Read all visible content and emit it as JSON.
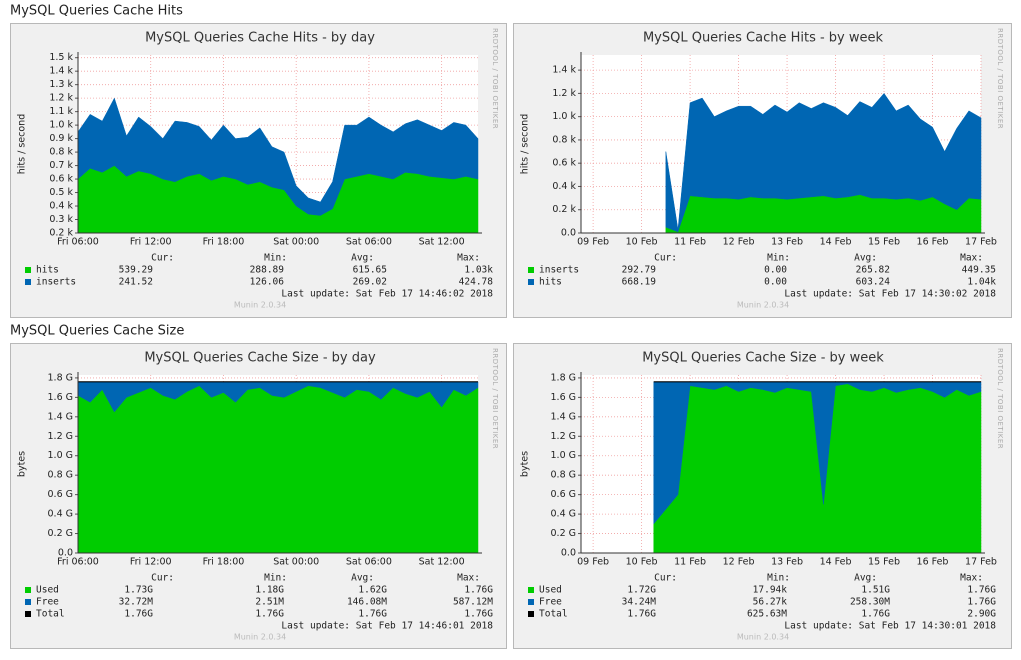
{
  "sections": [
    {
      "title": "MySQL Queries Cache Hits"
    },
    {
      "title": "MySQL Queries Cache Size"
    }
  ],
  "chart_data": [
    {
      "type": "area",
      "title": "MySQL Queries Cache Hits - by day",
      "ylabel": "hits / second",
      "watermark": "RRDTOOL / TOBI OETIKER",
      "last_update": "Last update: Sat Feb 17 14:46:02 2018",
      "version": "Munin 2.0.34",
      "grid": true,
      "categories": [
        "Fri 06:00",
        null,
        null,
        null,
        null,
        null,
        "Fri 12:00",
        null,
        null,
        null,
        null,
        null,
        "Fri 18:00",
        null,
        null,
        null,
        null,
        null,
        "Sat 00:00",
        null,
        null,
        null,
        null,
        null,
        "Sat 06:00",
        null,
        null,
        null,
        null,
        null,
        "Sat 12:00",
        null,
        null,
        null
      ],
      "ylim": [
        200,
        1520
      ],
      "yticks": [
        {
          "value": 200,
          "label": "0.2 k"
        },
        {
          "value": 300,
          "label": "0.3 k"
        },
        {
          "value": 400,
          "label": "0.4 k"
        },
        {
          "value": 500,
          "label": "0.5 k"
        },
        {
          "value": 600,
          "label": "0.6 k"
        },
        {
          "value": 700,
          "label": "0.7 k"
        },
        {
          "value": 800,
          "label": "0.8 k"
        },
        {
          "value": 900,
          "label": "0.9 k"
        },
        {
          "value": 1000,
          "label": "1.0 k"
        },
        {
          "value": 1100,
          "label": "1.1 k"
        },
        {
          "value": 1200,
          "label": "1.2 k"
        },
        {
          "value": 1300,
          "label": "1.3 k"
        },
        {
          "value": 1400,
          "label": "1.4 k"
        },
        {
          "value": 1500,
          "label": "1.5 k"
        }
      ],
      "stats_header": [
        "Cur:",
        "Min:",
        "Avg:",
        "Max:"
      ],
      "series": [
        {
          "name": "hits",
          "color": "#00cc00",
          "style": "area",
          "stats": [
            "539.29",
            "288.89",
            "615.65",
            "1.03k"
          ],
          "values": [
            600,
            680,
            650,
            700,
            620,
            660,
            640,
            600,
            580,
            620,
            640,
            590,
            620,
            600,
            560,
            580,
            540,
            520,
            400,
            340,
            330,
            380,
            600,
            620,
            640,
            620,
            600,
            650,
            640,
            620,
            610,
            600,
            620,
            600
          ]
        },
        {
          "name": "inserts",
          "color": "#0066b3",
          "style": "area",
          "stats": [
            "241.52",
            "126.06",
            "269.02",
            "424.78"
          ],
          "values": [
            350,
            400,
            380,
            500,
            300,
            400,
            350,
            300,
            450,
            400,
            350,
            300,
            380,
            300,
            350,
            400,
            300,
            280,
            150,
            120,
            100,
            200,
            400,
            380,
            420,
            380,
            350,
            360,
            400,
            380,
            350,
            420,
            380,
            300
          ]
        }
      ]
    },
    {
      "type": "area",
      "title": "MySQL Queries Cache Hits - by week",
      "ylabel": "hits / second",
      "watermark": "RRDTOOL / TOBI OETIKER",
      "last_update": "Last update: Sat Feb 17 14:30:02 2018",
      "version": "Munin 2.0.34",
      "grid": true,
      "categories": [
        null,
        "09 Feb",
        null,
        null,
        null,
        "10 Feb",
        null,
        null,
        null,
        "11 Feb",
        null,
        null,
        null,
        "12 Feb",
        null,
        null,
        null,
        "13 Feb",
        null,
        null,
        null,
        "14 Feb",
        null,
        null,
        null,
        "15 Feb",
        null,
        null,
        null,
        "16 Feb",
        null,
        null,
        null,
        "17 Feb"
      ],
      "ylim": [
        0,
        1530
      ],
      "yticks": [
        {
          "value": 0,
          "label": "0.0"
        },
        {
          "value": 200,
          "label": "0.2 k"
        },
        {
          "value": 400,
          "label": "0.4 k"
        },
        {
          "value": 600,
          "label": "0.6 k"
        },
        {
          "value": 800,
          "label": "0.8 k"
        },
        {
          "value": 1000,
          "label": "1.0 k"
        },
        {
          "value": 1200,
          "label": "1.2 k"
        },
        {
          "value": 1400,
          "label": "1.4 k"
        }
      ],
      "stats_header": [
        "Cur:",
        "Min:",
        "Avg:",
        "Max:"
      ],
      "series": [
        {
          "name": "inserts",
          "color": "#00cc00",
          "style": "area",
          "stats": [
            "292.79",
            "0.00",
            "265.82",
            "449.35"
          ],
          "values": [
            null,
            null,
            null,
            null,
            null,
            null,
            null,
            50,
            10,
            320,
            310,
            300,
            300,
            290,
            310,
            300,
            300,
            290,
            300,
            310,
            320,
            300,
            310,
            330,
            300,
            300,
            290,
            300,
            280,
            310,
            250,
            200,
            300,
            290
          ]
        },
        {
          "name": "hits",
          "color": "#0066b3",
          "style": "area",
          "stats": [
            "668.19",
            "0.00",
            "603.24",
            "1.04k"
          ],
          "values": [
            null,
            null,
            null,
            null,
            null,
            null,
            null,
            650,
            20,
            800,
            850,
            700,
            750,
            800,
            780,
            720,
            800,
            750,
            820,
            760,
            800,
            780,
            700,
            800,
            780,
            900,
            760,
            800,
            700,
            600,
            450,
            700,
            750,
            700
          ]
        }
      ]
    },
    {
      "type": "area",
      "title": "MySQL Queries Cache Size - by day",
      "ylabel": "bytes",
      "watermark": "RRDTOOL / TOBI OETIKER",
      "last_update": "Last update: Sat Feb 17 14:46:01 2018",
      "version": "Munin 2.0.34",
      "grid": true,
      "categories": [
        "Fri 06:00",
        null,
        null,
        null,
        null,
        null,
        "Fri 12:00",
        null,
        null,
        null,
        null,
        null,
        "Fri 18:00",
        null,
        null,
        null,
        null,
        null,
        "Sat 00:00",
        null,
        null,
        null,
        null,
        null,
        "Sat 06:00",
        null,
        null,
        null,
        null,
        null,
        "Sat 12:00",
        null,
        null,
        null
      ],
      "ylim": [
        0,
        1.83
      ],
      "yticks": [
        {
          "value": 0,
          "label": "0.0"
        },
        {
          "value": 0.2,
          "label": "0.2 G"
        },
        {
          "value": 0.4,
          "label": "0.4 G"
        },
        {
          "value": 0.6,
          "label": "0.6 G"
        },
        {
          "value": 0.8,
          "label": "0.8 G"
        },
        {
          "value": 1.0,
          "label": "1.0 G"
        },
        {
          "value": 1.2,
          "label": "1.2 G"
        },
        {
          "value": 1.4,
          "label": "1.4 G"
        },
        {
          "value": 1.6,
          "label": "1.6 G"
        },
        {
          "value": 1.8,
          "label": "1.8 G"
        }
      ],
      "stats_header": [
        "Cur:",
        "Min:",
        "Avg:",
        "Max:"
      ],
      "series": [
        {
          "name": "Used",
          "color": "#00cc00",
          "style": "area",
          "stats": [
            "1.73G",
            "1.18G",
            "1.62G",
            "1.76G"
          ],
          "values": [
            1.62,
            1.55,
            1.68,
            1.45,
            1.6,
            1.65,
            1.7,
            1.62,
            1.58,
            1.66,
            1.72,
            1.6,
            1.65,
            1.55,
            1.68,
            1.7,
            1.62,
            1.6,
            1.66,
            1.72,
            1.7,
            1.65,
            1.6,
            1.68,
            1.66,
            1.58,
            1.7,
            1.64,
            1.6,
            1.66,
            1.5,
            1.68,
            1.62,
            1.7
          ]
        },
        {
          "name": "Free",
          "color": "#0066b3",
          "style": "area",
          "stats": [
            "32.72M",
            "2.51M",
            "146.08M",
            "587.12M"
          ],
          "values": [
            0.14,
            0.21,
            0.08,
            0.31,
            0.16,
            0.11,
            0.06,
            0.14,
            0.18,
            0.1,
            0.04,
            0.16,
            0.11,
            0.21,
            0.08,
            0.06,
            0.14,
            0.16,
            0.1,
            0.04,
            0.06,
            0.11,
            0.16,
            0.08,
            0.1,
            0.18,
            0.06,
            0.12,
            0.16,
            0.1,
            0.26,
            0.08,
            0.14,
            0.06
          ]
        },
        {
          "name": "Total",
          "color": "#000000",
          "style": "line",
          "stats": [
            "1.76G",
            "1.76G",
            "1.76G",
            "1.76G"
          ],
          "values": [
            1.76,
            1.76,
            1.76,
            1.76,
            1.76,
            1.76,
            1.76,
            1.76,
            1.76,
            1.76,
            1.76,
            1.76,
            1.76,
            1.76,
            1.76,
            1.76,
            1.76,
            1.76,
            1.76,
            1.76,
            1.76,
            1.76,
            1.76,
            1.76,
            1.76,
            1.76,
            1.76,
            1.76,
            1.76,
            1.76,
            1.76,
            1.76,
            1.76,
            1.76
          ]
        }
      ]
    },
    {
      "type": "area",
      "title": "MySQL Queries Cache Size - by week",
      "ylabel": "bytes",
      "watermark": "RRDTOOL / TOBI OETIKER",
      "last_update": "Last update: Sat Feb 17 14:30:01 2018",
      "version": "Munin 2.0.34",
      "grid": true,
      "categories": [
        null,
        "09 Feb",
        null,
        null,
        null,
        "10 Feb",
        null,
        null,
        null,
        "11 Feb",
        null,
        null,
        null,
        "12 Feb",
        null,
        null,
        null,
        "13 Feb",
        null,
        null,
        null,
        "14 Feb",
        null,
        null,
        null,
        "15 Feb",
        null,
        null,
        null,
        "16 Feb",
        null,
        null,
        null,
        "17 Feb"
      ],
      "ylim": [
        0,
        1.83
      ],
      "yticks": [
        {
          "value": 0,
          "label": "0.0"
        },
        {
          "value": 0.2,
          "label": "0.2 G"
        },
        {
          "value": 0.4,
          "label": "0.4 G"
        },
        {
          "value": 0.6,
          "label": "0.6 G"
        },
        {
          "value": 0.8,
          "label": "0.8 G"
        },
        {
          "value": 1.0,
          "label": "1.0 G"
        },
        {
          "value": 1.2,
          "label": "1.2 G"
        },
        {
          "value": 1.4,
          "label": "1.4 G"
        },
        {
          "value": 1.6,
          "label": "1.6 G"
        },
        {
          "value": 1.8,
          "label": "1.8 G"
        }
      ],
      "stats_header": [
        "Cur:",
        "Min:",
        "Avg:",
        "Max:"
      ],
      "series": [
        {
          "name": "Used",
          "color": "#00cc00",
          "style": "area",
          "stats": [
            "1.72G",
            "17.94k",
            "1.51G",
            "1.76G"
          ],
          "values": [
            null,
            null,
            null,
            null,
            null,
            null,
            0.3,
            0.45,
            0.6,
            1.72,
            1.7,
            1.68,
            1.72,
            1.66,
            1.7,
            1.68,
            1.65,
            1.7,
            1.68,
            1.66,
            0.5,
            1.72,
            1.74,
            1.68,
            1.66,
            1.7,
            1.65,
            1.68,
            1.7,
            1.66,
            1.6,
            1.68,
            1.62,
            1.66
          ]
        },
        {
          "name": "Free",
          "color": "#0066b3",
          "style": "area",
          "stats": [
            "34.24M",
            "56.27k",
            "258.30M",
            "1.76G"
          ],
          "values": [
            null,
            null,
            null,
            null,
            null,
            null,
            1.46,
            1.31,
            1.16,
            0.04,
            0.06,
            0.08,
            0.04,
            0.1,
            0.06,
            0.08,
            0.11,
            0.06,
            0.08,
            0.1,
            1.26,
            0.04,
            0.02,
            0.08,
            0.1,
            0.06,
            0.11,
            0.08,
            0.06,
            0.1,
            0.16,
            0.08,
            0.14,
            0.1
          ]
        },
        {
          "name": "Total",
          "color": "#000000",
          "style": "line",
          "stats": [
            "1.76G",
            "625.63M",
            "1.76G",
            "2.90G"
          ],
          "values": [
            null,
            null,
            null,
            null,
            null,
            null,
            1.76,
            1.76,
            1.76,
            1.76,
            1.76,
            1.76,
            1.76,
            1.76,
            1.76,
            1.76,
            1.76,
            1.76,
            1.76,
            1.76,
            1.76,
            1.76,
            1.76,
            1.76,
            1.76,
            1.76,
            1.76,
            1.76,
            1.76,
            1.76,
            1.76,
            1.76,
            1.76,
            1.76
          ]
        }
      ]
    }
  ]
}
